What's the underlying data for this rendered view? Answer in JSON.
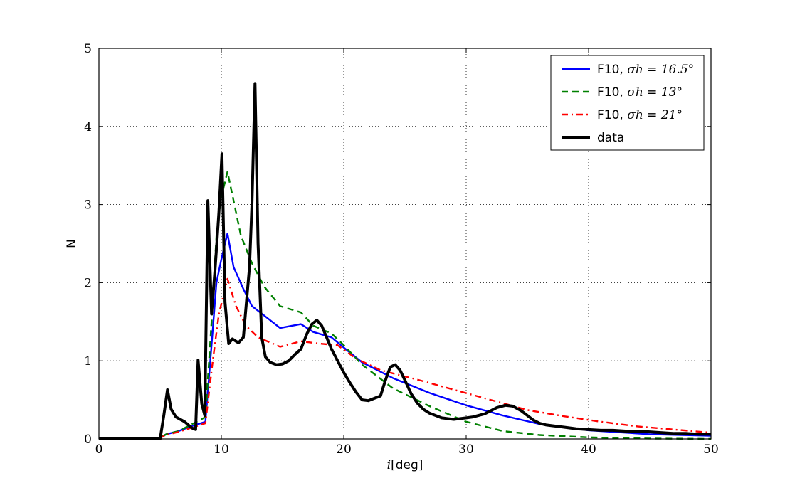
{
  "chart_data": {
    "type": "line",
    "title": "",
    "xlabel": "[deg]",
    "xlabel_symbol": "i",
    "ylabel": "N",
    "xlim": [
      0,
      50
    ],
    "ylim": [
      0,
      5
    ],
    "xticks": [
      "0",
      "10",
      "20",
      "30",
      "40",
      "50"
    ],
    "yticks": [
      "0",
      "1",
      "2",
      "3",
      "4",
      "5"
    ],
    "grid": true,
    "legend_position": "top-right",
    "series": [
      {
        "name": "F10, σh = 16.5°",
        "name_prefix": "F10, ",
        "name_math": "σh = 16.5°",
        "color": "#0000ff",
        "style": "solid",
        "points": [
          [
            0,
            0
          ],
          [
            4.8,
            0
          ],
          [
            5.5,
            0.06
          ],
          [
            6.5,
            0.1
          ],
          [
            7.5,
            0.16
          ],
          [
            8.7,
            0.22
          ],
          [
            9.2,
            1.2
          ],
          [
            9.6,
            2.0
          ],
          [
            10.0,
            2.3
          ],
          [
            10.5,
            2.63
          ],
          [
            11.0,
            2.2
          ],
          [
            11.8,
            1.92
          ],
          [
            12.5,
            1.7
          ],
          [
            13.5,
            1.58
          ],
          [
            14.8,
            1.42
          ],
          [
            16.5,
            1.47
          ],
          [
            17.5,
            1.37
          ],
          [
            19,
            1.3
          ],
          [
            20,
            1.17
          ],
          [
            21.5,
            0.98
          ],
          [
            24,
            0.78
          ],
          [
            27,
            0.59
          ],
          [
            30,
            0.43
          ],
          [
            33,
            0.3
          ],
          [
            36,
            0.19
          ],
          [
            40,
            0.11
          ],
          [
            45,
            0.06
          ],
          [
            50,
            0.04
          ]
        ]
      },
      {
        "name": "F10, σh = 13°",
        "name_prefix": "F10, ",
        "name_math": "σh = 13°",
        "color": "#008000",
        "style": "dashed",
        "points": [
          [
            0,
            0
          ],
          [
            4.8,
            0
          ],
          [
            5.5,
            0.06
          ],
          [
            6.5,
            0.1
          ],
          [
            7.5,
            0.18
          ],
          [
            8.7,
            0.28
          ],
          [
            9.2,
            1.5
          ],
          [
            9.6,
            2.6
          ],
          [
            10.0,
            3.1
          ],
          [
            10.5,
            3.42
          ],
          [
            11.0,
            3.05
          ],
          [
            11.6,
            2.6
          ],
          [
            12.5,
            2.25
          ],
          [
            13.5,
            1.95
          ],
          [
            14.8,
            1.7
          ],
          [
            16.5,
            1.62
          ],
          [
            17.5,
            1.45
          ],
          [
            19,
            1.35
          ],
          [
            20,
            1.2
          ],
          [
            21.5,
            0.95
          ],
          [
            24,
            0.65
          ],
          [
            27,
            0.42
          ],
          [
            30,
            0.22
          ],
          [
            33,
            0.1
          ],
          [
            36,
            0.05
          ],
          [
            40,
            0.02
          ],
          [
            45,
            0.005
          ],
          [
            50,
            0
          ]
        ]
      },
      {
        "name": "F10, σh = 21°",
        "name_prefix": "F10, ",
        "name_math": "σh = 21°",
        "color": "#ff0000",
        "style": "dashdot",
        "points": [
          [
            0,
            0
          ],
          [
            4.8,
            0
          ],
          [
            5.5,
            0.05
          ],
          [
            6.5,
            0.09
          ],
          [
            7.5,
            0.14
          ],
          [
            8.7,
            0.2
          ],
          [
            9.3,
            1.0
          ],
          [
            9.8,
            1.6
          ],
          [
            10.5,
            2.05
          ],
          [
            11.2,
            1.7
          ],
          [
            12,
            1.45
          ],
          [
            13,
            1.3
          ],
          [
            14.8,
            1.18
          ],
          [
            16.5,
            1.25
          ],
          [
            18,
            1.22
          ],
          [
            19.5,
            1.2
          ],
          [
            21,
            1.03
          ],
          [
            23,
            0.88
          ],
          [
            26,
            0.76
          ],
          [
            29,
            0.63
          ],
          [
            32,
            0.5
          ],
          [
            35,
            0.37
          ],
          [
            38,
            0.29
          ],
          [
            41,
            0.22
          ],
          [
            44,
            0.16
          ],
          [
            47,
            0.12
          ],
          [
            50,
            0.08
          ]
        ]
      },
      {
        "name": "data",
        "name_prefix": "data",
        "name_math": "",
        "color": "#000000",
        "style": "solid",
        "width": 4,
        "points": [
          [
            0,
            0
          ],
          [
            5.0,
            0
          ],
          [
            5.3,
            0.3
          ],
          [
            5.6,
            0.63
          ],
          [
            5.9,
            0.38
          ],
          [
            6.3,
            0.28
          ],
          [
            7,
            0.22
          ],
          [
            7.6,
            0.14
          ],
          [
            7.9,
            0.12
          ],
          [
            8.1,
            1.01
          ],
          [
            8.4,
            0.45
          ],
          [
            8.65,
            0.3
          ],
          [
            8.9,
            3.05
          ],
          [
            9.2,
            1.6
          ],
          [
            9.5,
            2.2
          ],
          [
            9.8,
            2.9
          ],
          [
            10.05,
            3.65
          ],
          [
            10.3,
            1.75
          ],
          [
            10.6,
            1.22
          ],
          [
            10.9,
            1.28
          ],
          [
            11.4,
            1.23
          ],
          [
            11.8,
            1.3
          ],
          [
            12.3,
            2.2
          ],
          [
            12.5,
            3.0
          ],
          [
            12.75,
            4.55
          ],
          [
            13.0,
            2.5
          ],
          [
            13.3,
            1.3
          ],
          [
            13.6,
            1.05
          ],
          [
            14,
            0.98
          ],
          [
            14.5,
            0.95
          ],
          [
            15,
            0.96
          ],
          [
            15.5,
            1.0
          ],
          [
            16,
            1.08
          ],
          [
            16.5,
            1.15
          ],
          [
            17,
            1.35
          ],
          [
            17.4,
            1.47
          ],
          [
            17.8,
            1.52
          ],
          [
            18.2,
            1.45
          ],
          [
            18.6,
            1.3
          ],
          [
            19,
            1.15
          ],
          [
            19.5,
            1.0
          ],
          [
            20,
            0.85
          ],
          [
            20.5,
            0.72
          ],
          [
            21,
            0.6
          ],
          [
            21.5,
            0.5
          ],
          [
            22,
            0.49
          ],
          [
            22.5,
            0.52
          ],
          [
            23,
            0.55
          ],
          [
            23.4,
            0.75
          ],
          [
            23.8,
            0.92
          ],
          [
            24.2,
            0.95
          ],
          [
            24.6,
            0.88
          ],
          [
            25,
            0.75
          ],
          [
            25.5,
            0.58
          ],
          [
            26,
            0.46
          ],
          [
            26.5,
            0.38
          ],
          [
            27,
            0.33
          ],
          [
            27.5,
            0.3
          ],
          [
            28,
            0.27
          ],
          [
            28.5,
            0.26
          ],
          [
            29,
            0.25
          ],
          [
            29.5,
            0.26
          ],
          [
            30,
            0.27
          ],
          [
            30.5,
            0.28
          ],
          [
            31,
            0.3
          ],
          [
            31.5,
            0.32
          ],
          [
            32,
            0.36
          ],
          [
            32.5,
            0.4
          ],
          [
            33.2,
            0.43
          ],
          [
            33.8,
            0.42
          ],
          [
            34.5,
            0.36
          ],
          [
            35,
            0.3
          ],
          [
            35.5,
            0.24
          ],
          [
            36,
            0.2
          ],
          [
            36.5,
            0.18
          ],
          [
            37,
            0.17
          ],
          [
            37.5,
            0.16
          ],
          [
            38,
            0.15
          ],
          [
            39,
            0.13
          ],
          [
            40,
            0.12
          ],
          [
            41,
            0.11
          ],
          [
            42,
            0.11
          ],
          [
            43,
            0.1
          ],
          [
            44,
            0.1
          ],
          [
            45,
            0.09
          ],
          [
            46,
            0.08
          ],
          [
            47,
            0.07
          ],
          [
            48,
            0.07
          ],
          [
            49,
            0.06
          ],
          [
            50,
            0.06
          ]
        ]
      }
    ]
  }
}
